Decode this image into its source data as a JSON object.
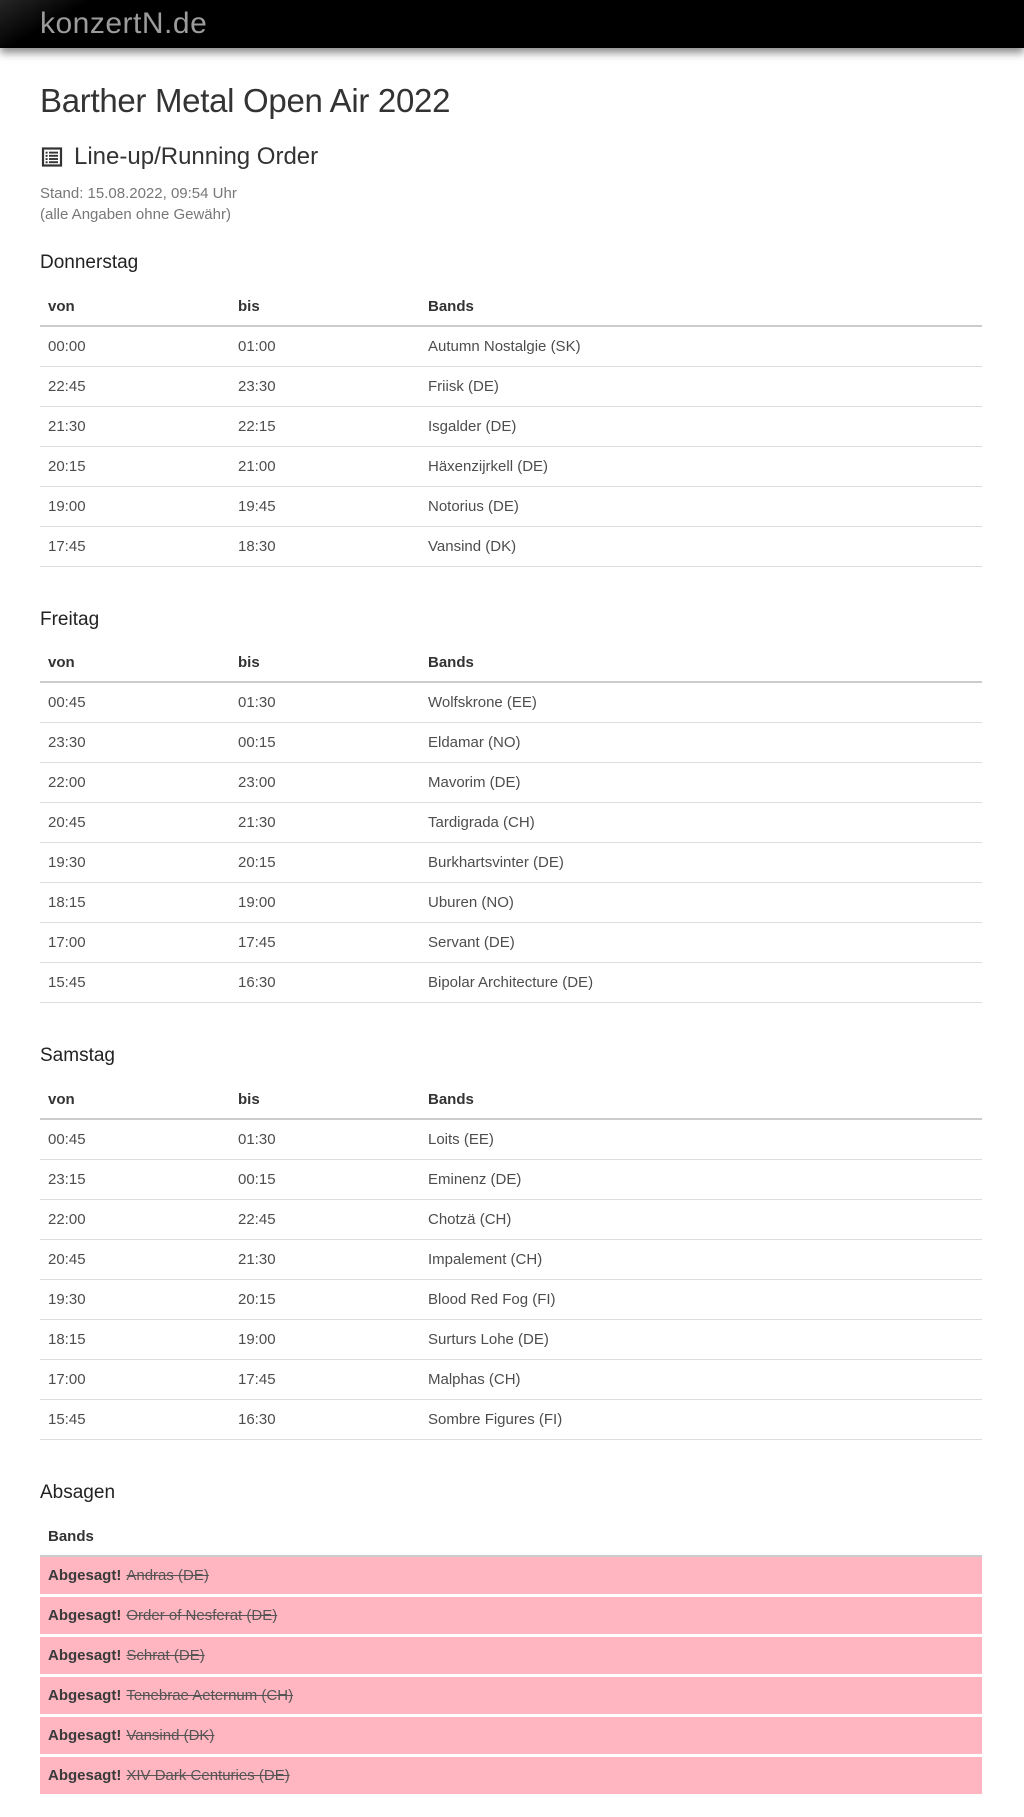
{
  "site": {
    "logo": "konzertN.de"
  },
  "page": {
    "title": "Barther Metal Open Air 2022",
    "section_title": "Line-up/Running Order",
    "stand_line1": "Stand: 15.08.2022, 09:54 Uhr",
    "stand_line2": "(alle Angaben ohne Gewähr)",
    "list_icon": "list-icon"
  },
  "columns": {
    "von": "von",
    "bis": "bis",
    "bands": "Bands"
  },
  "days": [
    {
      "name": "Donnerstag",
      "rows": [
        {
          "von": "00:00",
          "bis": "01:00",
          "band": "Autumn Nostalgie (SK)"
        },
        {
          "von": "22:45",
          "bis": "23:30",
          "band": "Friisk (DE)"
        },
        {
          "von": "21:30",
          "bis": "22:15",
          "band": "Isgalder (DE)"
        },
        {
          "von": "20:15",
          "bis": "21:00",
          "band": "Häxenzijrkell (DE)"
        },
        {
          "von": "19:00",
          "bis": "19:45",
          "band": "Notorius (DE)"
        },
        {
          "von": "17:45",
          "bis": "18:30",
          "band": "Vansind (DK)"
        }
      ]
    },
    {
      "name": "Freitag",
      "rows": [
        {
          "von": "00:45",
          "bis": "01:30",
          "band": "Wolfskrone (EE)"
        },
        {
          "von": "23:30",
          "bis": "00:15",
          "band": "Eldamar (NO)"
        },
        {
          "von": "22:00",
          "bis": "23:00",
          "band": "Mavorim (DE)"
        },
        {
          "von": "20:45",
          "bis": "21:30",
          "band": "Tardigrada (CH)"
        },
        {
          "von": "19:30",
          "bis": "20:15",
          "band": "Burkhartsvinter (DE)"
        },
        {
          "von": "18:15",
          "bis": "19:00",
          "band": "Uburen (NO)"
        },
        {
          "von": "17:00",
          "bis": "17:45",
          "band": "Servant (DE)"
        },
        {
          "von": "15:45",
          "bis": "16:30",
          "band": "Bipolar Architecture (DE)"
        }
      ]
    },
    {
      "name": "Samstag",
      "rows": [
        {
          "von": "00:45",
          "bis": "01:30",
          "band": "Loits (EE)"
        },
        {
          "von": "23:15",
          "bis": "00:15",
          "band": "Eminenz (DE)"
        },
        {
          "von": "22:00",
          "bis": "22:45",
          "band": "Chotzä (CH)"
        },
        {
          "von": "20:45",
          "bis": "21:30",
          "band": "Impalement (CH)"
        },
        {
          "von": "19:30",
          "bis": "20:15",
          "band": "Blood Red Fog (FI)"
        },
        {
          "von": "18:15",
          "bis": "19:00",
          "band": "Surturs Lohe (DE)"
        },
        {
          "von": "17:00",
          "bis": "17:45",
          "band": "Malphas (CH)"
        },
        {
          "von": "15:45",
          "bis": "16:30",
          "band": "Sombre Figures (FI)"
        }
      ]
    }
  ],
  "cancellations": {
    "heading": "Absagen",
    "column": "Bands",
    "label": "Abgesagt!",
    "bands": [
      "Andras (DE)",
      "Order of Nesferat (DE)",
      "Schrat (DE)",
      "Tenebrae Aeternum (CH)",
      "Vansind (DK)",
      "XIV Dark Centuries (DE)"
    ]
  },
  "colors": {
    "header_bg": "#000000",
    "logo_text": "#9c9c9c",
    "cancelled_bg": "#ffb6c1",
    "heading_text": "#333333",
    "body_text": "#4d4d4d",
    "row_border": "#dddddd"
  }
}
